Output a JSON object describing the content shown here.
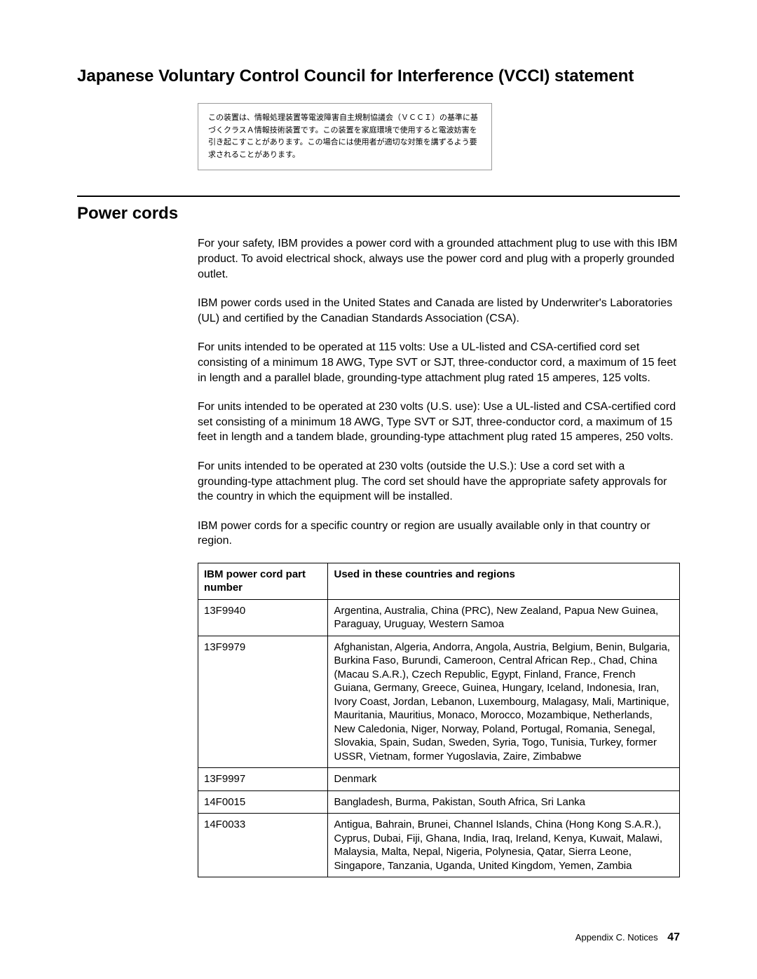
{
  "heading_vcci": "Japanese Voluntary Control Council for Interference (VCCI) statement",
  "vcci_text": "この装置は、情報処理装置等電波障害自主規制協議会（ＶＣＣＩ）の基準に基づくクラスＡ情報技術装置です。この装置を家庭環境で使用すると電波妨害を引き起こすことがあります。この場合には使用者が適切な対策を講ずるよう要求されることがあります。",
  "heading_power": "Power cords",
  "paragraphs": [
    "For your safety, IBM provides a power cord with a grounded attachment plug to use with this IBM product. To avoid electrical shock, always use the power cord and plug with a properly grounded outlet.",
    "IBM power cords used in the United States and Canada are listed by Underwriter's Laboratories (UL) and certified by the Canadian Standards Association (CSA).",
    "For units intended to be operated at 115 volts: Use a UL-listed and CSA-certified cord set consisting of a minimum 18 AWG, Type SVT or SJT, three-conductor cord, a maximum of 15 feet in length and a parallel blade, grounding-type attachment plug rated 15 amperes, 125 volts.",
    "For units intended to be operated at 230 volts (U.S. use): Use a UL-listed and CSA-certified cord set consisting of a minimum 18 AWG, Type SVT or SJT, three-conductor cord, a maximum of 15 feet in length and a tandem blade, grounding-type attachment plug rated 15 amperes, 250 volts.",
    "For units intended to be operated at 230 volts (outside the U.S.): Use a cord set with a grounding-type attachment plug. The cord set should have the appropriate safety approvals for the country in which the equipment will be installed.",
    "IBM power cords for a specific country or region are usually available only in that country or region."
  ],
  "table": {
    "header_col1": "IBM power cord part number",
    "header_col2": "Used in these countries and regions",
    "rows": [
      {
        "part": "13F9940",
        "regions": "Argentina, Australia, China (PRC), New Zealand, Papua New Guinea, Paraguay, Uruguay, Western Samoa"
      },
      {
        "part": "13F9979",
        "regions": "Afghanistan, Algeria, Andorra, Angola, Austria, Belgium, Benin, Bulgaria, Burkina Faso, Burundi, Cameroon, Central African Rep., Chad, China (Macau S.A.R.), Czech Republic, Egypt, Finland, France, French Guiana, Germany, Greece, Guinea, Hungary, Iceland, Indonesia, Iran, Ivory Coast, Jordan, Lebanon, Luxembourg, Malagasy, Mali, Martinique, Mauritania, Mauritius, Monaco, Morocco, Mozambique, Netherlands, New Caledonia, Niger, Norway, Poland, Portugal, Romania, Senegal, Slovakia, Spain, Sudan, Sweden, Syria, Togo, Tunisia, Turkey, former USSR, Vietnam, former Yugoslavia, Zaire, Zimbabwe"
      },
      {
        "part": "13F9997",
        "regions": "Denmark"
      },
      {
        "part": "14F0015",
        "regions": "Bangladesh, Burma, Pakistan, South Africa, Sri Lanka"
      },
      {
        "part": "14F0033",
        "regions": "Antigua, Bahrain, Brunei, Channel Islands, China (Hong Kong S.A.R.), Cyprus, Dubai, Fiji, Ghana, India, Iraq, Ireland, Kenya, Kuwait, Malawi, Malaysia, Malta, Nepal, Nigeria, Polynesia, Qatar, Sierra Leone, Singapore, Tanzania, Uganda, United Kingdom, Yemen, Zambia"
      }
    ]
  },
  "footer_label": "Appendix C. Notices",
  "footer_page": "47"
}
